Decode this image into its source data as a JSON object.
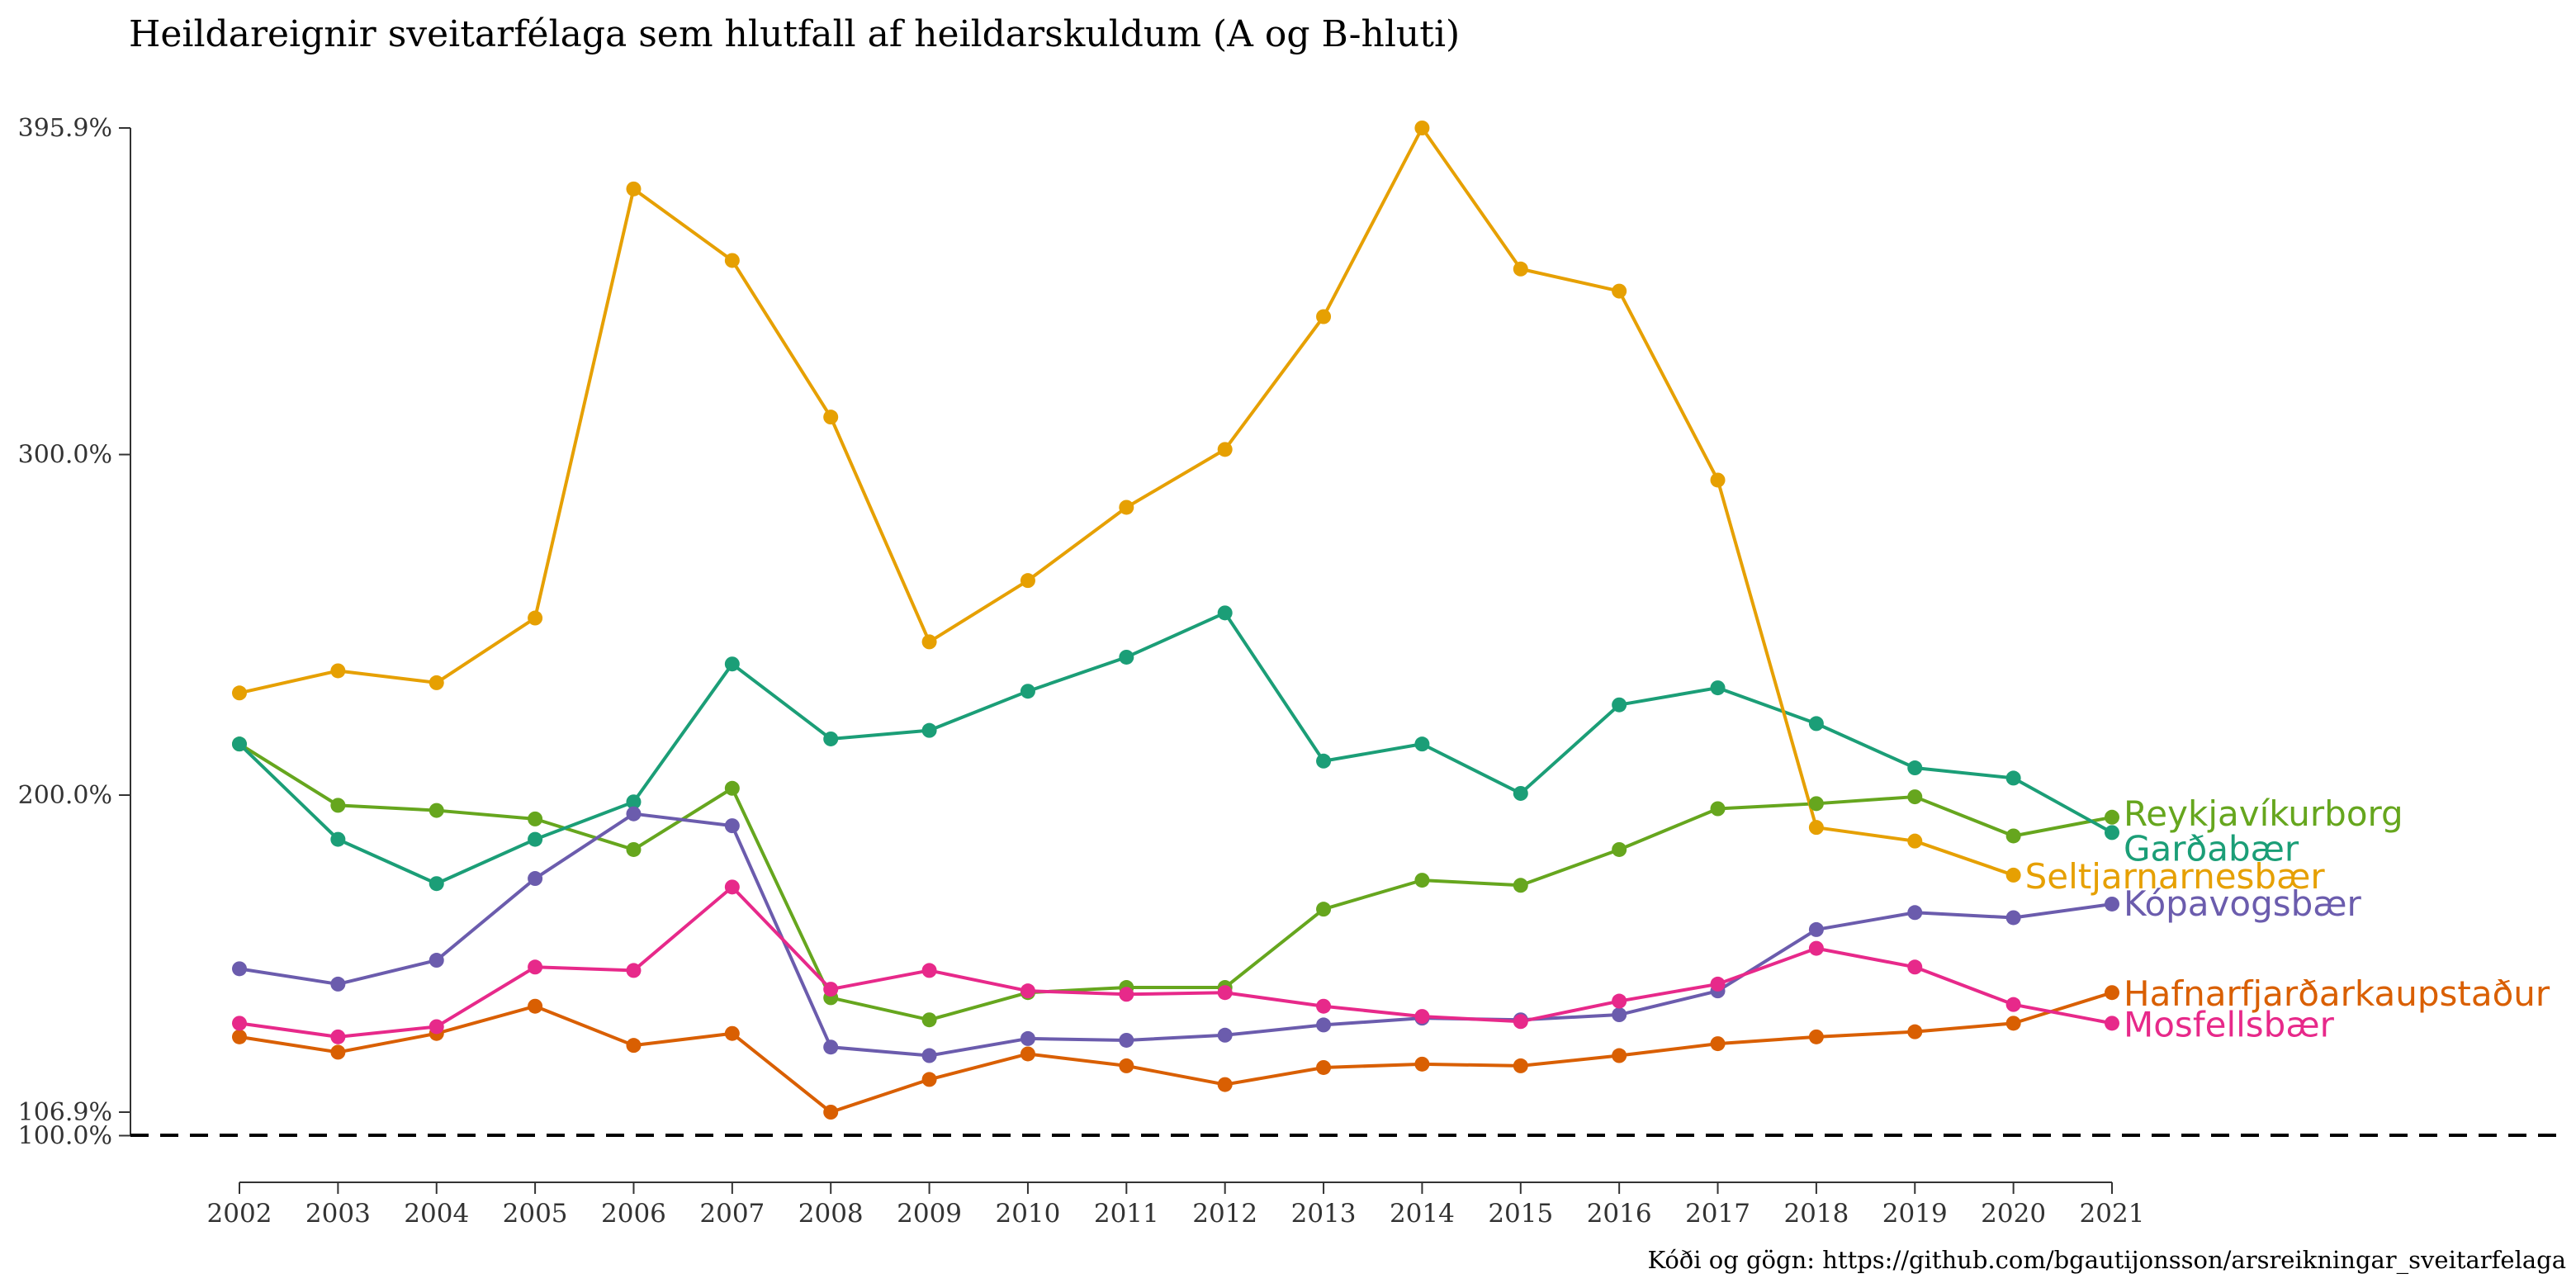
{
  "chart_data": {
    "type": "line",
    "title": "Heildareignir sveitarfélaga sem hlutfall af heildarskuldum (A og B-hluti)",
    "caption": "Kóði og gögn: https://github.com/bgautijonsson/arsreikningar_sveitarfelaga",
    "x": [
      2002,
      2003,
      2004,
      2005,
      2006,
      2007,
      2008,
      2009,
      2010,
      2011,
      2012,
      2013,
      2014,
      2015,
      2016,
      2017,
      2018,
      2019,
      2020,
      2021
    ],
    "x_tick_labels": [
      "2002",
      "2003",
      "2004",
      "2005",
      "2006",
      "2007",
      "2008",
      "2009",
      "2010",
      "2011",
      "2012",
      "2013",
      "2014",
      "2015",
      "2016",
      "2017",
      "2018",
      "2019",
      "2020",
      "2021"
    ],
    "y_tick_labels": [
      "395.9%",
      "300.0%",
      "200.0%",
      "106.9%",
      "100.0%"
    ],
    "y_ticks": [
      395.9,
      300.0,
      200.0,
      106.9,
      100.0
    ],
    "ylim": [
      100.0,
      395.9
    ],
    "reference_line": 100.0,
    "grid": false,
    "legend": "direct labels at line ends",
    "series": [
      {
        "name": "Reykjavíkurborg",
        "color": "#66a61e",
        "values": [
          215.0,
          197.0,
          195.5,
          193.0,
          184.0,
          202.0,
          140.5,
          134.0,
          142.0,
          143.5,
          143.5,
          166.5,
          175.0,
          173.5,
          184.0,
          196.0,
          197.5,
          199.5,
          188.0,
          193.5
        ]
      },
      {
        "name": "Garðabær",
        "color": "#1b9e77",
        "values": [
          215.0,
          187.0,
          174.0,
          187.0,
          198.0,
          238.5,
          216.5,
          219.0,
          230.5,
          240.5,
          253.5,
          210.0,
          215.0,
          200.5,
          226.5,
          231.5,
          221.0,
          208.0,
          205.0,
          189.0
        ]
      },
      {
        "name": "Seltjarnarnesbær",
        "color": "#e6a002",
        "values": [
          230.0,
          236.5,
          233.0,
          252.0,
          378.0,
          357.0,
          311.0,
          245.0,
          263.0,
          284.5,
          301.5,
          340.5,
          395.9,
          354.5,
          348.0,
          292.5,
          190.5,
          186.5,
          176.5,
          null
        ]
      },
      {
        "name": "Kópavogsbær",
        "color": "#6b5cad",
        "values": [
          149.0,
          144.5,
          151.5,
          175.5,
          194.5,
          191.0,
          126.0,
          123.5,
          128.5,
          128.0,
          129.5,
          132.5,
          134.5,
          134.0,
          135.5,
          142.5,
          160.5,
          165.5,
          164.0,
          168.0
        ]
      },
      {
        "name": "Hafnarfjarðarkaupstaður",
        "color": "#d95f02",
        "values": [
          129.0,
          124.5,
          130.0,
          138.0,
          126.5,
          130.0,
          106.9,
          116.5,
          124.0,
          120.5,
          115.0,
          120.0,
          121.0,
          120.5,
          123.5,
          127.0,
          129.0,
          130.5,
          133.0,
          142.0
        ]
      },
      {
        "name": "Mosfellsbær",
        "color": "#e7298a",
        "values": [
          133.0,
          129.0,
          132.0,
          149.5,
          148.5,
          173.0,
          143.0,
          148.5,
          142.5,
          141.5,
          142.0,
          138.0,
          135.0,
          133.5,
          139.5,
          144.5,
          155.0,
          149.5,
          138.5,
          133.0
        ]
      }
    ]
  }
}
